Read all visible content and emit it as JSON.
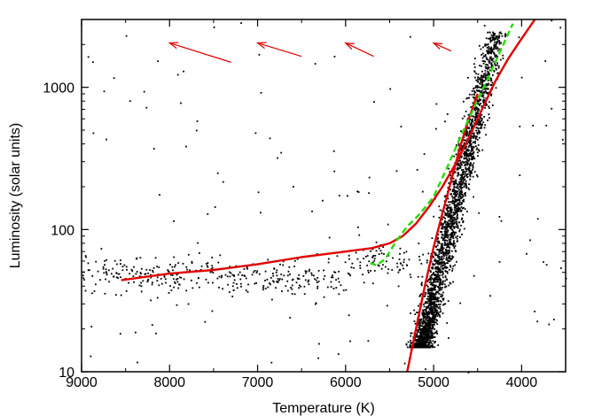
{
  "chart_data": {
    "type": "scatter",
    "title": "",
    "xlabel": "Temperature (K)",
    "ylabel": "Luminosity (solar units)",
    "x_axis": {
      "range": [
        9000,
        3500
      ],
      "reversed": true,
      "scale": "linear",
      "ticks": [
        9000,
        8000,
        7000,
        6000,
        5000,
        4000
      ],
      "tick_labels": [
        "9000",
        "8000",
        "7000",
        "6000",
        "5000",
        "4000"
      ]
    },
    "y_axis": {
      "range": [
        10,
        3000
      ],
      "scale": "log",
      "ticks": [
        10,
        100,
        1000
      ],
      "tick_labels": [
        "10",
        "100",
        "1000"
      ]
    },
    "grid": false,
    "colors": {
      "points": "#000000",
      "red_track": "#e00000",
      "green_track": "#22dd00",
      "arrows": "#e00000"
    },
    "scatter_regions": [
      {
        "name": "red-giant-branch",
        "x_range": [
          4200,
          5400
        ],
        "y_range": [
          15,
          2500
        ],
        "count": 2600
      },
      {
        "name": "horizontal-branch-scatter",
        "x_range": [
          5000,
          9000
        ],
        "y_range": [
          30,
          110
        ],
        "count": 420
      },
      {
        "name": "sparse-field",
        "x_range": [
          3500,
          9000
        ],
        "y_range": [
          10,
          3000
        ],
        "count": 140
      }
    ],
    "series": [
      {
        "style": "solid",
        "color": "#e00000",
        "x": [
          8550,
          8000,
          7500,
          7000,
          6500,
          6000,
          5700,
          5500,
          5350,
          5200,
          5050,
          4900,
          4750,
          4600,
          4450,
          4300,
          4150,
          4000,
          3850
        ],
        "y": [
          44,
          49,
          52,
          57,
          64,
          70,
          74,
          80,
          90,
          110,
          145,
          200,
          290,
          440,
          700,
          1100,
          1600,
          2200,
          3000
        ]
      },
      {
        "style": "solid",
        "color": "#e00000",
        "x": [
          5300,
          5200,
          5100,
          5000,
          4900,
          4800,
          4700,
          4600,
          4500
        ],
        "y": [
          10,
          20,
          40,
          75,
          130,
          220,
          380,
          600,
          900
        ]
      },
      {
        "style": "dashed",
        "color": "#22dd00",
        "x": [
          5720,
          5650,
          5550,
          5430,
          5300,
          5150,
          5000,
          4850,
          4700,
          4550,
          4400,
          4250,
          4100
        ],
        "y": [
          58,
          56,
          62,
          82,
          105,
          130,
          170,
          270,
          440,
          700,
          1100,
          1750,
          2800
        ]
      }
    ],
    "annotations": [
      {
        "type": "arrow",
        "color": "#e00000",
        "from": [
          7300,
          1500
        ],
        "to": [
          8000,
          2050
        ]
      },
      {
        "type": "arrow",
        "color": "#e00000",
        "from": [
          6500,
          1650
        ],
        "to": [
          7000,
          2050
        ]
      },
      {
        "type": "arrow",
        "color": "#e00000",
        "from": [
          5680,
          1650
        ],
        "to": [
          6000,
          2050
        ]
      },
      {
        "type": "arrow",
        "color": "#e00000",
        "from": [
          4800,
          1800
        ],
        "to": [
          5000,
          2050
        ]
      }
    ]
  }
}
